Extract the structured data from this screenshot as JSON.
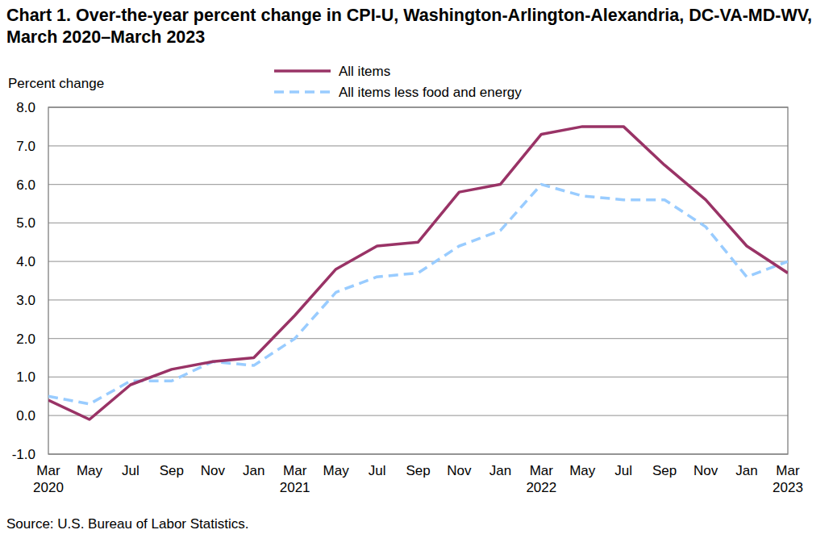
{
  "chart_data": {
    "type": "line",
    "title": "Chart 1. Over-the-year percent change in CPI-U, Washington-Arlington-Alexandria, DC-VA-MD-WV, March 2020–March 2023",
    "y_label": "Percent change",
    "source": "Source: U.S. Bureau of Labor Statistics.",
    "categories": [
      "Mar 2020",
      "May",
      "Jul",
      "Sep",
      "Nov",
      "Jan",
      "Mar 2021",
      "May",
      "Jul",
      "Sep",
      "Nov",
      "Jan",
      "Mar 2022",
      "May",
      "Jul",
      "Sep",
      "Nov",
      "Jan",
      "Mar 2023"
    ],
    "series": [
      {
        "name": "All items",
        "color": "#993366",
        "line_style": "solid",
        "values": [
          0.4,
          -0.1,
          0.8,
          1.2,
          1.4,
          1.5,
          2.6,
          3.8,
          4.4,
          4.5,
          5.8,
          6.0,
          7.3,
          7.5,
          7.5,
          6.5,
          5.6,
          4.4,
          3.7
        ]
      },
      {
        "name": "All items less food and energy",
        "color": "#99ccff",
        "line_style": "dashed",
        "values": [
          0.5,
          0.3,
          0.9,
          0.9,
          1.4,
          1.3,
          2.0,
          3.2,
          3.6,
          3.7,
          4.4,
          4.8,
          6.0,
          5.7,
          5.6,
          5.6,
          4.9,
          3.6,
          4.0
        ]
      }
    ],
    "ylim": [
      -1,
      8
    ],
    "yticks": [
      {
        "value": -1,
        "label": "-1.0"
      },
      {
        "value": 0,
        "label": "0.0"
      },
      {
        "value": 1,
        "label": "1.0"
      },
      {
        "value": 2,
        "label": "2.0"
      },
      {
        "value": 3,
        "label": "3.0"
      },
      {
        "value": 4,
        "label": "4.0"
      },
      {
        "value": 5,
        "label": "5.0"
      },
      {
        "value": 6,
        "label": "6.0"
      },
      {
        "value": 7,
        "label": "7.0"
      },
      {
        "value": 8,
        "label": "8.0"
      }
    ],
    "grid": true,
    "legend": "top"
  }
}
